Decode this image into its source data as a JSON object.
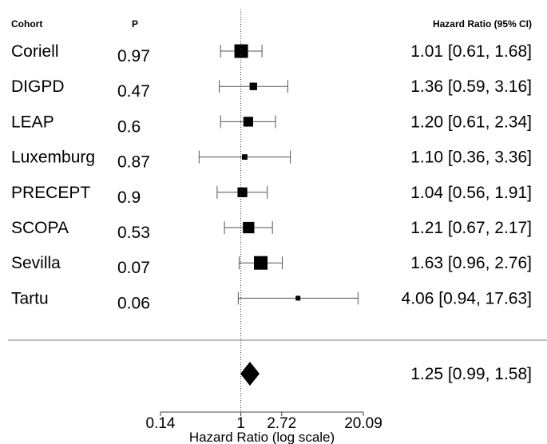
{
  "chart_data": {
    "type": "forest",
    "columns": {
      "label": "Cohort",
      "p": "P",
      "estimate": "Hazard Ratio (95% CI)"
    },
    "rows": [
      {
        "cohort": "Coriell",
        "p": "0.97",
        "hr": 1.01,
        "lo": 0.61,
        "hi": 1.68,
        "text": "1.01 [0.61,  1.68]",
        "weight": 1.0
      },
      {
        "cohort": "DIGPD",
        "p": "0.47",
        "hr": 1.36,
        "lo": 0.59,
        "hi": 3.16,
        "text": "1.36 [0.59,  3.16]",
        "weight": 0.55
      },
      {
        "cohort": "LEAP",
        "p": "0.6",
        "hr": 1.2,
        "lo": 0.61,
        "hi": 2.34,
        "text": "1.20 [0.61,  2.34]",
        "weight": 0.72
      },
      {
        "cohort": "Luxemburg",
        "p": "0.87",
        "hr": 1.1,
        "lo": 0.36,
        "hi": 3.36,
        "text": "1.10 [0.36,  3.36]",
        "weight": 0.4
      },
      {
        "cohort": "PRECEPT",
        "p": "0.9",
        "hr": 1.04,
        "lo": 0.56,
        "hi": 1.91,
        "text": "1.04 [0.56,  1.91]",
        "weight": 0.72
      },
      {
        "cohort": "SCOPA",
        "p": "0.53",
        "hr": 1.21,
        "lo": 0.67,
        "hi": 2.17,
        "text": "1.21 [0.67,  2.17]",
        "weight": 0.84
      },
      {
        "cohort": "Sevilla",
        "p": "0.07",
        "hr": 1.63,
        "lo": 0.96,
        "hi": 2.76,
        "text": "1.63 [0.96,  2.76]",
        "weight": 1.0
      },
      {
        "cohort": "Tartu",
        "p": "0.06",
        "hr": 4.06,
        "lo": 0.94,
        "hi": 17.63,
        "text": "4.06 [0.94, 17.63]",
        "weight": 0.35
      }
    ],
    "summary": {
      "hr": 1.25,
      "lo": 0.99,
      "hi": 1.58,
      "text": "1.25 [0.99,  1.58]"
    },
    "x_axis": {
      "scale": "log",
      "ticks": [
        0.14,
        1,
        2.72,
        20.09
      ],
      "tick_labels": [
        "0.14",
        "1",
        "2.72",
        "20.09"
      ],
      "label": "Hazard Ratio (log scale)",
      "range": [
        0.14,
        20.09
      ]
    },
    "reference_line": 1,
    "colors": {
      "marks": "#000000",
      "lines": "#555555"
    }
  }
}
